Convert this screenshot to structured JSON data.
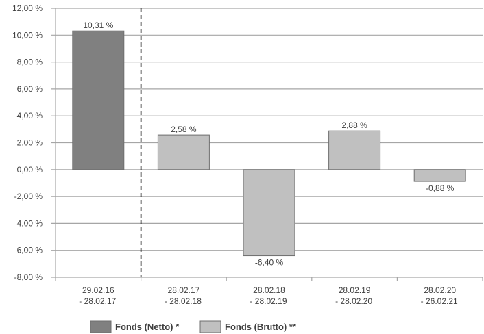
{
  "chart_data": {
    "type": "bar",
    "title": "",
    "xlabel": "",
    "ylabel": "",
    "ylim": [
      -8,
      12
    ],
    "ytick_step": 2,
    "ytick_labels": [
      "12,00 %",
      "10,00 %",
      "8,00 %",
      "6,00 %",
      "4,00 %",
      "2,00 %",
      "0,00 %",
      "-2,00 %",
      "-4,00 %",
      "-6,00 %",
      "-8,00 %"
    ],
    "grid": true,
    "legend_placement": "bottom",
    "categories": [
      [
        "29.02.16",
        "- 28.02.17"
      ],
      [
        "28.02.17",
        "- 28.02.18"
      ],
      [
        "28.02.18",
        "- 28.02.19"
      ],
      [
        "28.02.19",
        "- 28.02.20"
      ],
      [
        "28.02.20",
        "- 26.02.21"
      ]
    ],
    "values": [
      10.31,
      2.58,
      -6.4,
      2.88,
      -0.88
    ],
    "value_labels": [
      "10,31 %",
      "2,58 %",
      "-6,40 %",
      "2,88 %",
      "-0,88 %"
    ],
    "bar_series": [
      0,
      1,
      1,
      1,
      1
    ],
    "divider_after_category": 0,
    "series": [
      {
        "name": "Fonds (Netto) *",
        "color": "#808080"
      },
      {
        "name": "Fonds (Brutto) **",
        "color": "#c0c0c0"
      }
    ]
  }
}
